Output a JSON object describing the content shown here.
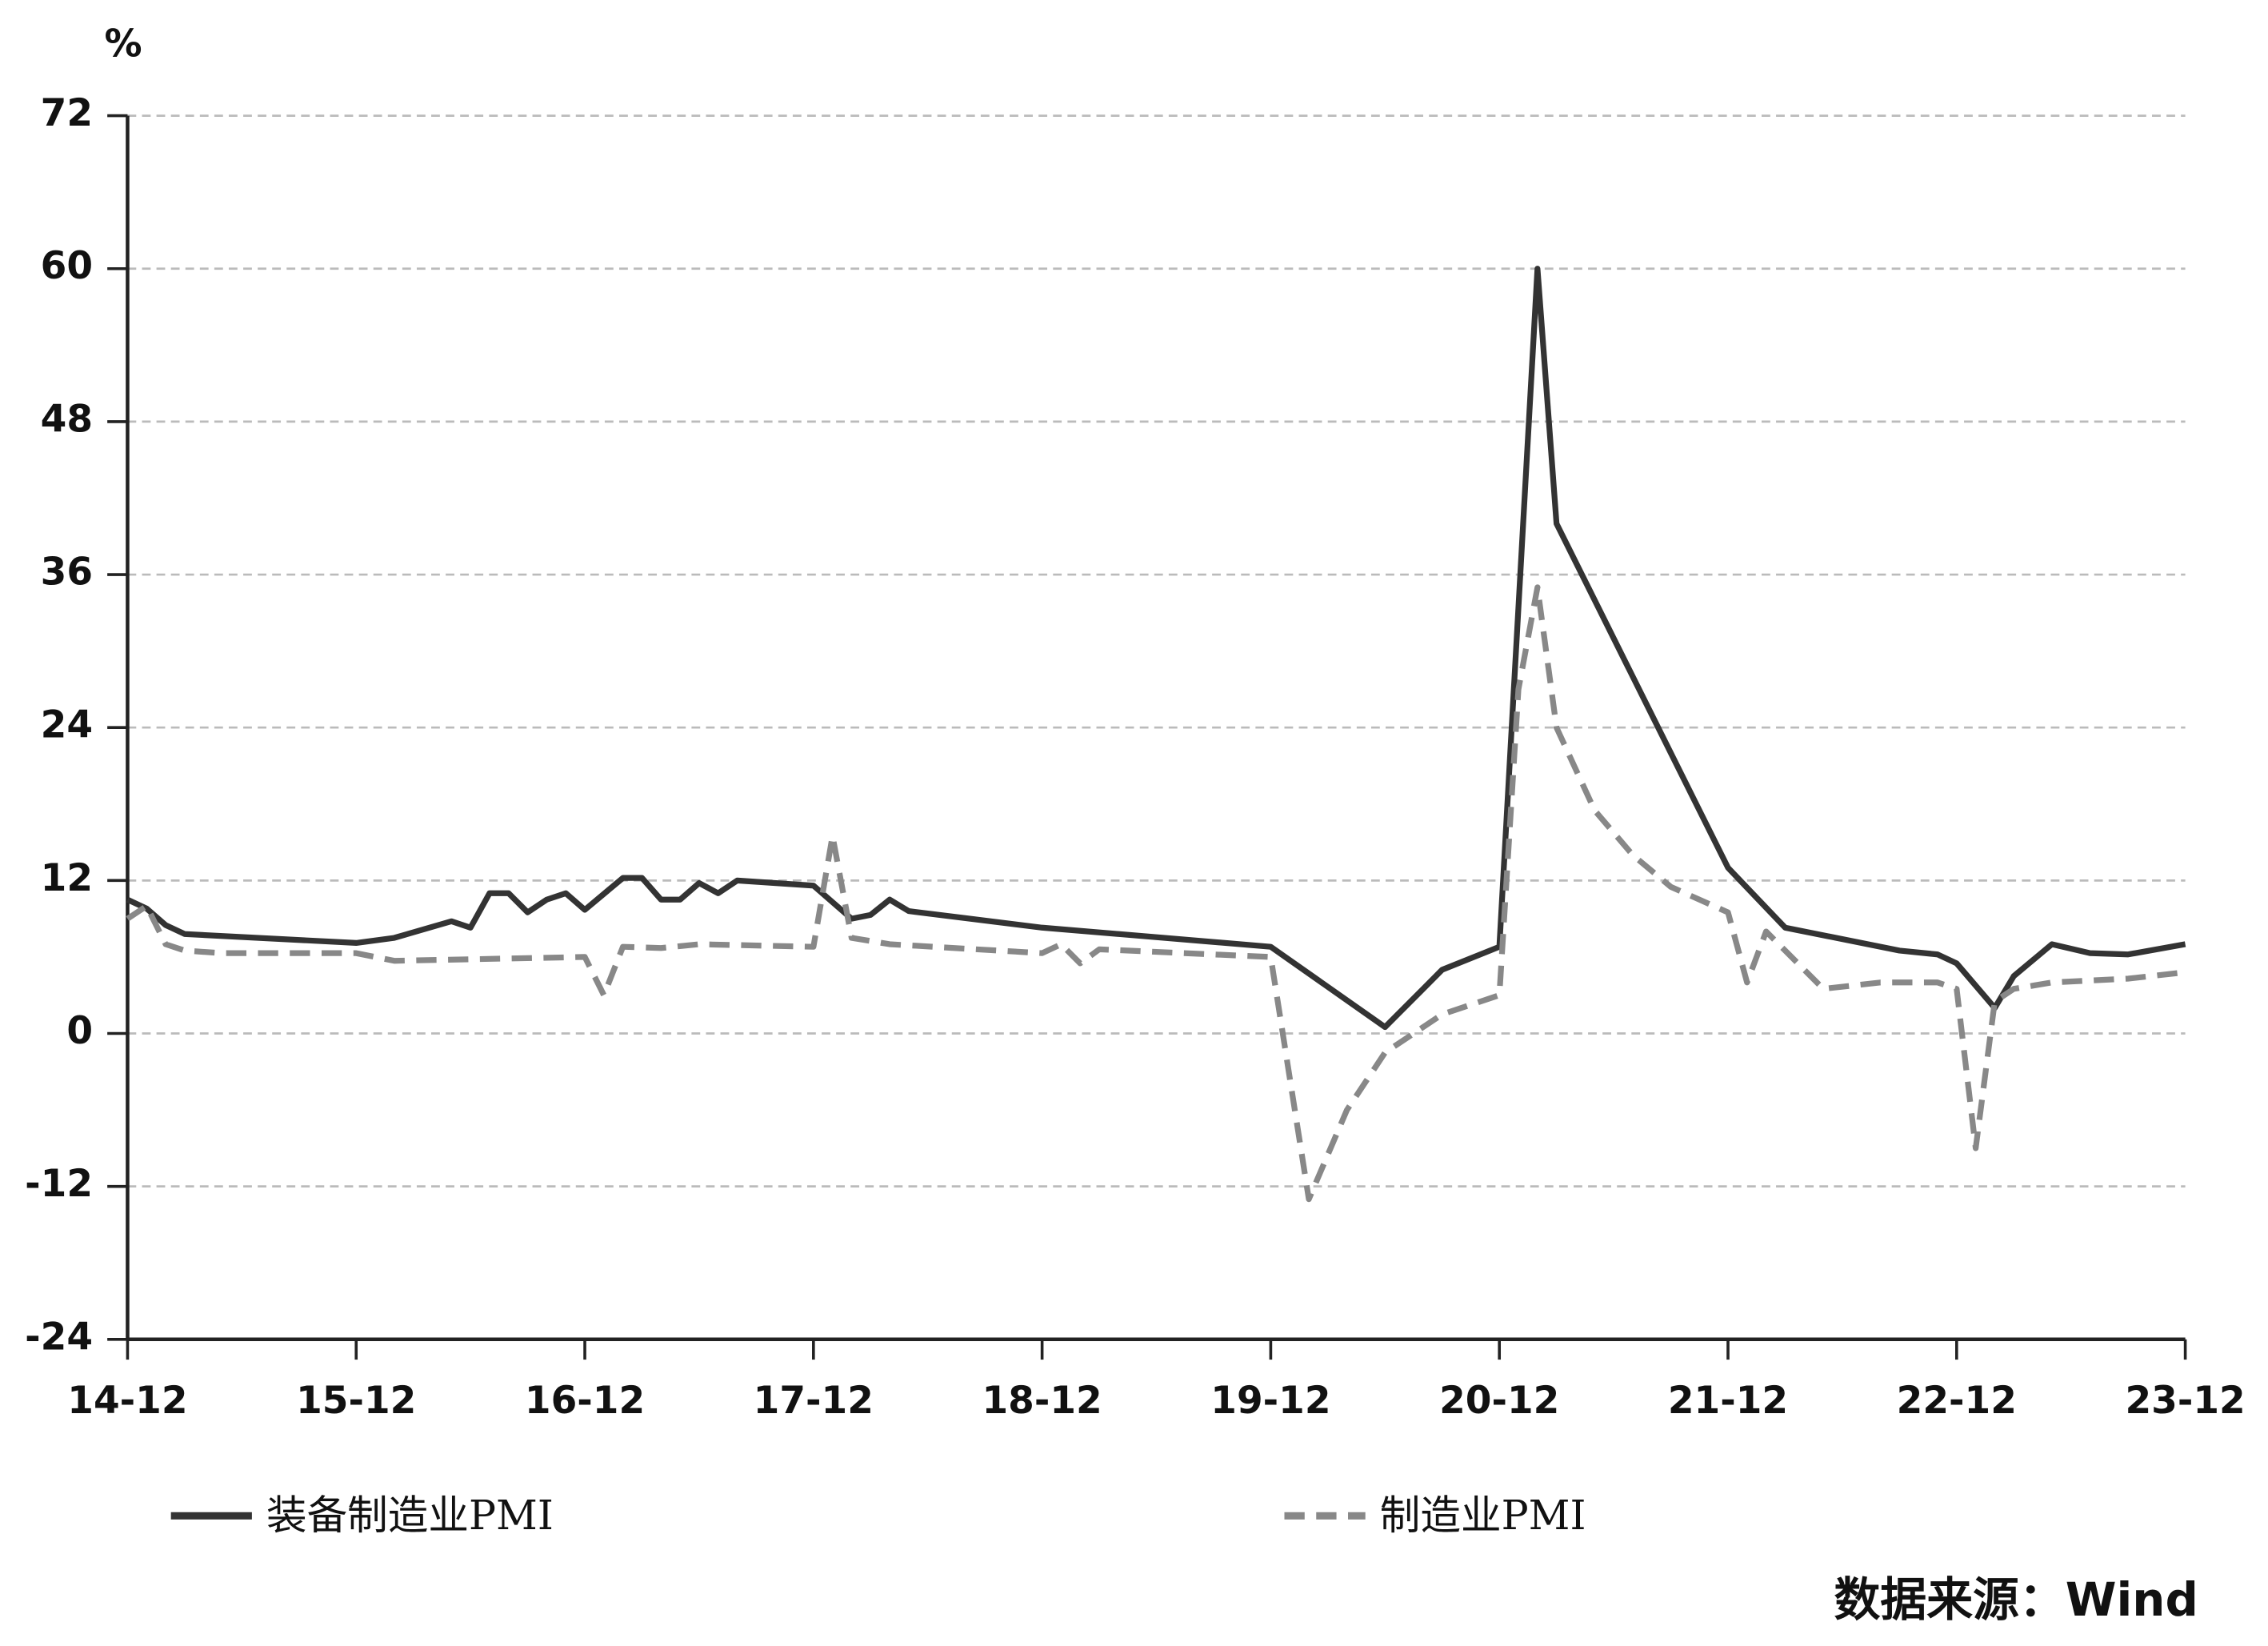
{
  "chart_data": {
    "type": "line",
    "y_unit": "%",
    "source": "数据来源：Wind",
    "xlim": [
      "14-12",
      "23-12"
    ],
    "xticks": [
      "14-12",
      "15-12",
      "16-12",
      "17-12",
      "18-12",
      "19-12",
      "20-12",
      "21-12",
      "22-12",
      "23-12"
    ],
    "ylim": [
      -24,
      72
    ],
    "yticks": [
      -24,
      -12,
      0,
      12,
      24,
      36,
      48,
      60,
      72
    ],
    "grid": true,
    "series": [
      {
        "name": "装备制造业PMI",
        "color": "#333333",
        "dash": false,
        "x": [
          "14-12",
          "15-01",
          "15-02",
          "15-03",
          "15-12",
          "16-02",
          "16-05",
          "16-06",
          "16-07",
          "16-08",
          "16-09",
          "16-10",
          "16-11",
          "16-12",
          "17-02",
          "17-03",
          "17-04",
          "17-05",
          "17-06",
          "17-07",
          "17-08",
          "17-12",
          "18-02",
          "18-03",
          "18-04",
          "18-05",
          "18-12",
          "19-12",
          "20-06",
          "20-09",
          "20-12",
          "21-02",
          "21-03",
          "21-12",
          "22-03",
          "22-09",
          "22-11",
          "22-12",
          "23-02",
          "23-03",
          "23-05",
          "23-07",
          "23-09",
          "23-12"
        ],
        "values": [
          10.5,
          9.8,
          8.5,
          7.8,
          7.1,
          7.5,
          8.8,
          8.3,
          11,
          11,
          9.5,
          10.5,
          11,
          9.7,
          12.2,
          12.2,
          10.5,
          10.5,
          11.8,
          11,
          12,
          11.6,
          9,
          9.3,
          10.5,
          9.6,
          8.3,
          6.8,
          0.5,
          5,
          6.8,
          60,
          40,
          13,
          8.3,
          6.5,
          6.2,
          5.5,
          2,
          4.5,
          7,
          6.3,
          6.2,
          7
        ]
      },
      {
        "name": "制造业PMI",
        "color": "#888888",
        "dash": true,
        "x": [
          "14-12",
          "15-01",
          "15-02",
          "15-03",
          "15-05",
          "15-12",
          "16-02",
          "16-12",
          "17-01",
          "17-02",
          "17-04",
          "17-06",
          "17-12",
          "18-01",
          "18-02",
          "18-04",
          "18-12",
          "19-01",
          "19-02",
          "19-03",
          "19-12",
          "20-02",
          "20-04",
          "20-06",
          "20-09",
          "20-12",
          "21-01",
          "21-02",
          "21-03",
          "21-05",
          "21-07",
          "21-09",
          "21-12",
          "22-01",
          "22-02",
          "22-03",
          "22-05",
          "22-08",
          "22-11",
          "22-12",
          "23-01",
          "23-02",
          "23-03",
          "23-05",
          "23-09",
          "23-12"
        ],
        "values": [
          9,
          10,
          7,
          6.5,
          6.3,
          6.3,
          5.7,
          6,
          3,
          6.8,
          6.7,
          7,
          6.8,
          15.5,
          7.5,
          7,
          6.3,
          7,
          5.5,
          6.6,
          6,
          -13,
          -6,
          -1.5,
          1.5,
          3,
          27,
          35,
          24,
          17.5,
          14,
          11.5,
          9.5,
          4,
          8,
          6.5,
          3.5,
          4,
          4,
          3.5,
          -9,
          2.5,
          3.5,
          4,
          4.3,
          4.8
        ]
      }
    ]
  }
}
